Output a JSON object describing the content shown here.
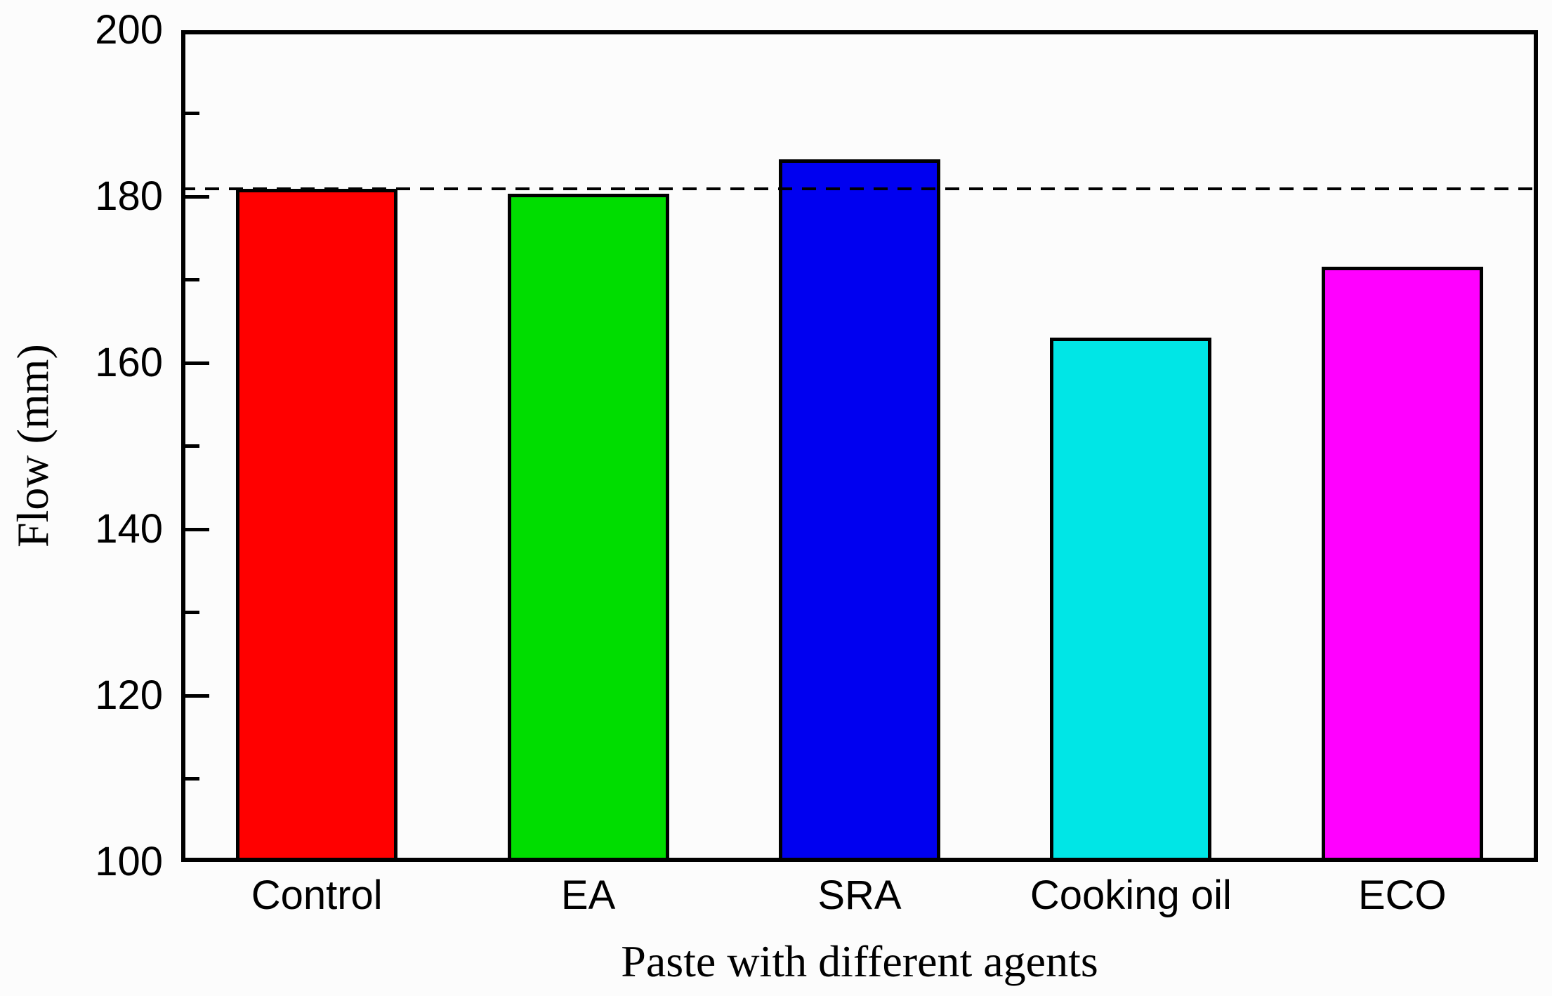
{
  "chart_data": {
    "type": "bar",
    "title": "",
    "xlabel": "Paste with different agents",
    "ylabel": "Flow (mm)",
    "categories": [
      "Control",
      "EA",
      "SRA",
      "Cooking oil",
      "ECO"
    ],
    "values": [
      180.9,
      180.3,
      184.5,
      163.0,
      171.6
    ],
    "bar_colors": [
      "#ff0000",
      "#00dd00",
      "#0000f0",
      "#00e6e6",
      "#ff00ff"
    ],
    "bar_outline_color": "#000000",
    "ylim": [
      100,
      200
    ],
    "y_major_ticks": [
      100,
      120,
      140,
      160,
      180,
      200
    ],
    "y_major_tick_labels": [
      "100",
      "120",
      "140",
      "160",
      "180",
      "200"
    ],
    "y_minor_ticks": [
      110,
      130,
      150,
      170,
      190
    ],
    "reference_line": {
      "value": 180.9,
      "style": "dashed",
      "color": "#000000"
    },
    "grid": false,
    "legend": false,
    "frame_color": "#000000",
    "background_color": "#fcfcfc"
  }
}
